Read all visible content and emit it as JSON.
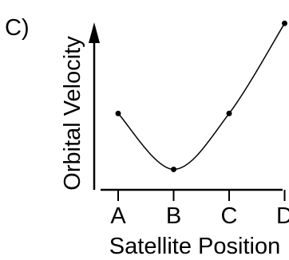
{
  "chart_data": {
    "type": "line",
    "panel_label": "C)",
    "xlabel": "Satellite Position",
    "ylabel": "Orbital Velocity",
    "categories": [
      "A",
      "B",
      "C",
      "D"
    ],
    "values": [
      4.5,
      1.4,
      4.5,
      9.5
    ],
    "ylim": [
      0,
      10
    ],
    "grid": false,
    "y_tick_labels": false
  }
}
